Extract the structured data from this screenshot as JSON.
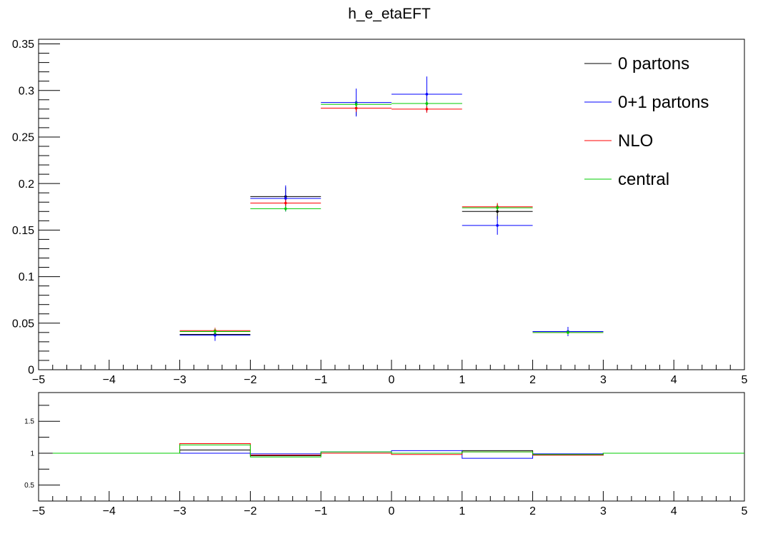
{
  "chart_data": [
    {
      "type": "histogram",
      "title": "h_e_etaEFT",
      "xlabel": "",
      "ylabel": "",
      "xlim": [
        -5,
        5
      ],
      "ylim": [
        0,
        0.355
      ],
      "bin_edges": [
        -3,
        -2,
        -1,
        0,
        1,
        2,
        3
      ],
      "x_ticks": [
        "−5",
        "−4",
        "−3",
        "−2",
        "−1",
        "0",
        "1",
        "2",
        "3",
        "4",
        "5"
      ],
      "y_ticks": [
        {
          "value": 0,
          "label": "0"
        },
        {
          "value": 0.05,
          "label": "0.05"
        },
        {
          "value": 0.1,
          "label": "0.1"
        },
        {
          "value": 0.15,
          "label": "0.15"
        },
        {
          "value": 0.2,
          "label": "0.2"
        },
        {
          "value": 0.25,
          "label": "0.25"
        },
        {
          "value": 0.3,
          "label": "0.3"
        },
        {
          "value": 0.35,
          "label": "0.35"
        }
      ],
      "legend_position": "top-right",
      "series": [
        {
          "name": "0 partons",
          "color": "#000000",
          "values": [
            0.038,
            0.186,
            0.281,
            0.286,
            0.17,
            0.041
          ],
          "errors": [
            0.005,
            0.01,
            0.008,
            0.009,
            0.008,
            0.004
          ]
        },
        {
          "name": "0+1 partons",
          "color": "#0000ff",
          "values": [
            0.037,
            0.184,
            0.287,
            0.296,
            0.155,
            0.041
          ],
          "errors": [
            0.006,
            0.014,
            0.015,
            0.019,
            0.01,
            0.005
          ]
        },
        {
          "name": "NLO",
          "color": "#ff0000",
          "values": [
            0.042,
            0.179,
            0.281,
            0.28,
            0.175,
            0.04
          ],
          "errors": [
            0.003,
            0.004,
            0.004,
            0.004,
            0.004,
            0.002
          ]
        },
        {
          "name": "central",
          "color": "#00cc00",
          "values": [
            0.041,
            0.173,
            0.285,
            0.286,
            0.174,
            0.04
          ],
          "errors": [
            0.003,
            0.003,
            0.003,
            0.003,
            0.003,
            0.002
          ]
        }
      ]
    },
    {
      "type": "line",
      "title": "",
      "xlabel": "",
      "ylabel": "",
      "xlim": [
        -5,
        5
      ],
      "ylim": [
        0.25,
        1.95
      ],
      "x_ticks": [
        "−5",
        "−4",
        "−3",
        "−2",
        "−1",
        "0",
        "1",
        "2",
        "3",
        "4",
        "5"
      ],
      "y_ticks": [
        {
          "value": 0.5,
          "label": "0.5"
        },
        {
          "value": 1,
          "label": "1"
        },
        {
          "value": 1.5,
          "label": "1.5"
        }
      ],
      "bin_edges": [
        -4.8,
        -3,
        -2,
        -1,
        0,
        1,
        2,
        3,
        5
      ],
      "series": [
        {
          "name": "0 partons",
          "color": "#000000",
          "values": [
            1,
            1.05,
            0.96,
            1.0,
            1.0,
            1.04,
            0.97,
            1
          ]
        },
        {
          "name": "0+1 partons",
          "color": "#0000ff",
          "values": [
            1,
            1.0,
            0.99,
            1.02,
            1.04,
            0.92,
            0.99,
            1
          ]
        },
        {
          "name": "NLO",
          "color": "#ff0000",
          "values": [
            1,
            1.15,
            0.97,
            1.0,
            0.98,
            1.02,
            0.97,
            1
          ]
        },
        {
          "name": "central",
          "color": "#00cc00",
          "values": [
            1,
            1.13,
            0.94,
            1.02,
            1.0,
            1.02,
            0.98,
            1
          ]
        }
      ]
    }
  ]
}
